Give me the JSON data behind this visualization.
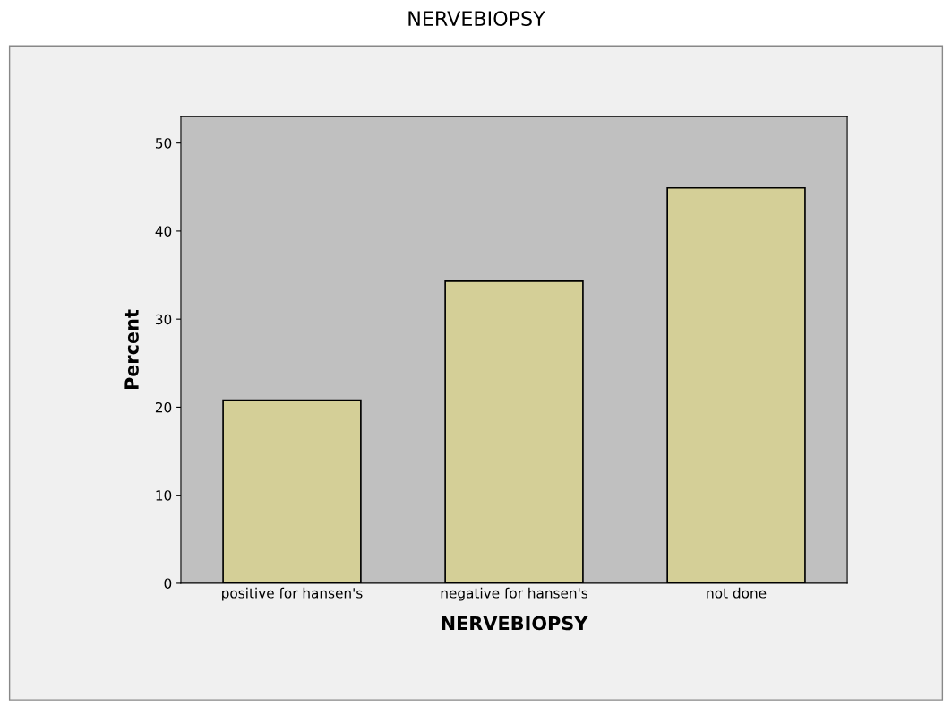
{
  "chart_data": {
    "type": "bar",
    "title": "NERVEBIOPSY",
    "xlabel": "NERVEBIOPSY",
    "ylabel": "Percent",
    "categories": [
      "positive for hansen's",
      "negative for hansen's",
      "not done"
    ],
    "values": [
      20.8,
      34.3,
      44.9
    ],
    "color": "#d4cf97",
    "ylim": [
      0,
      53
    ],
    "yticks": [
      0,
      10,
      20,
      30,
      40,
      50
    ],
    "grid": false
  }
}
